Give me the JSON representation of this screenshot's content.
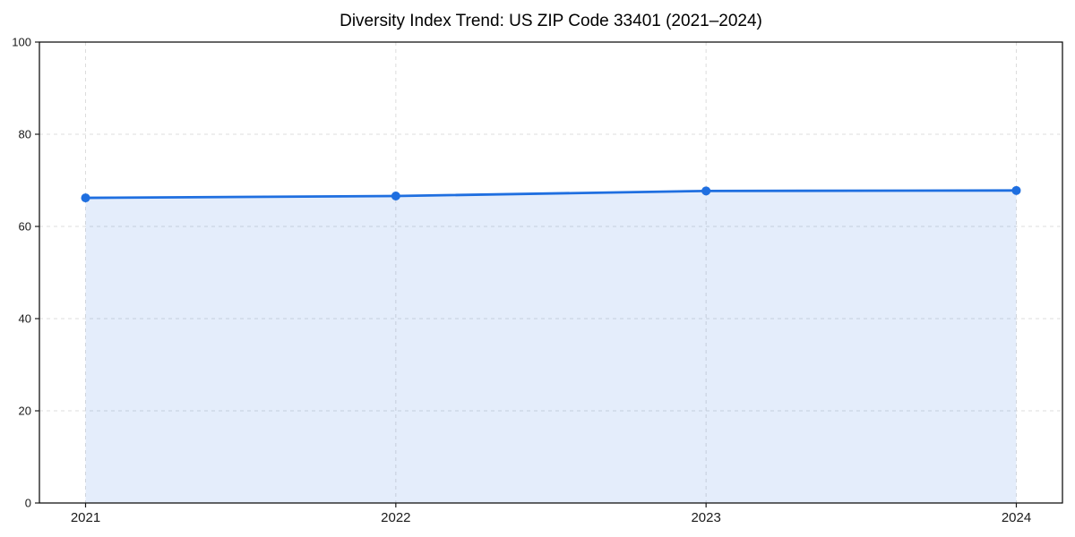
{
  "page": {
    "background_color": "#ffffff"
  },
  "chart_data": {
    "type": "area",
    "title": "Diversity Index Trend: US ZIP Code 33401 (2021–2024)",
    "categories": [
      "2021",
      "2022",
      "2023",
      "2024"
    ],
    "values": [
      66.2,
      66.6,
      67.7,
      67.8
    ],
    "xlabel": "",
    "ylabel": "",
    "ylim": [
      0,
      100
    ],
    "yticks": [
      0,
      20,
      40,
      60,
      80,
      100
    ],
    "grid": "dashed",
    "grid_on": true,
    "legend": "none",
    "line_color": "#1f6fe0",
    "marker_color": "#1f6fe0",
    "fill_color": "#1f6fe0",
    "fill_opacity": 0.12,
    "grid_color": "#dcdcdc",
    "spine_color": "#000000",
    "tick_color": "#1a1a1a",
    "tick_label_color": "#1a1a1a",
    "title_color": "#000000"
  }
}
